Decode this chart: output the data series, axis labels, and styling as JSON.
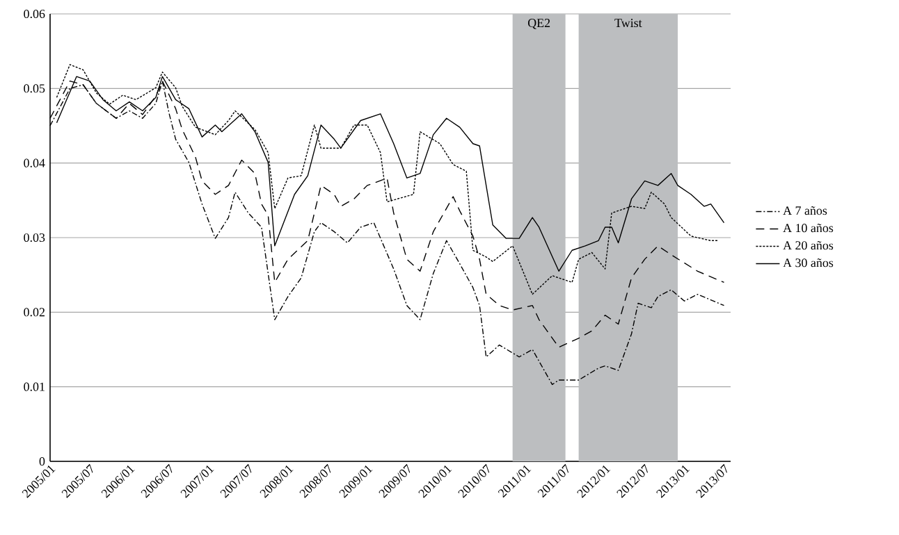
{
  "chart_data": {
    "type": "line",
    "ylim": [
      0,
      0.06
    ],
    "xlim": [
      "2005-01",
      "2013-08"
    ],
    "yticks": [
      0,
      0.01,
      0.02,
      0.03,
      0.04,
      0.05,
      0.06
    ],
    "xticks": [
      {
        "value": "2005-01",
        "label": "2005/01"
      },
      {
        "value": "2005-07",
        "label": "2005/07"
      },
      {
        "value": "2006-01",
        "label": "2006/01"
      },
      {
        "value": "2006-07",
        "label": "2006/07"
      },
      {
        "value": "2007-01",
        "label": "2007/01"
      },
      {
        "value": "2007-07",
        "label": "2007/07"
      },
      {
        "value": "2008-01",
        "label": "2008/01"
      },
      {
        "value": "2008-07",
        "label": "2008/07"
      },
      {
        "value": "2009-01",
        "label": "2009/01"
      },
      {
        "value": "2009-07",
        "label": "2009/07"
      },
      {
        "value": "2010-01",
        "label": "2010/01"
      },
      {
        "value": "2010-07",
        "label": "2010/07"
      },
      {
        "value": "2011-01",
        "label": "2011/01"
      },
      {
        "value": "2011-07",
        "label": "2011/07"
      },
      {
        "value": "2012-01",
        "label": "2012/01"
      },
      {
        "value": "2012-07",
        "label": "2012/07"
      },
      {
        "value": "2013-01",
        "label": "2013/01"
      },
      {
        "value": "2013-07",
        "label": "2013/07"
      }
    ],
    "grid": "y",
    "legend": "right",
    "marker": "none",
    "bands": [
      {
        "axis": "x",
        "from": "2010-11",
        "to": "2011-07",
        "label": "QE2",
        "color": "#bcbec0"
      },
      {
        "axis": "x",
        "from": "2011-09",
        "to": "2012-12",
        "label": "Twist",
        "color": "#bcbec0"
      }
    ],
    "series": [
      {
        "name": "A 7 años",
        "color": "#000000",
        "line_style": "dashdot",
        "x": [
          "2005-01",
          "2005-04",
          "2005-06",
          "2005-08",
          "2005-11",
          "2006-01",
          "2006-03",
          "2006-05",
          "2006-06",
          "2006-07",
          "2006-08",
          "2006-10",
          "2006-12",
          "2007-02",
          "2007-04",
          "2007-05",
          "2007-07",
          "2007-09",
          "2007-11",
          "2008-01",
          "2008-03",
          "2008-05",
          "2008-06",
          "2008-08",
          "2008-10",
          "2008-12",
          "2009-02",
          "2009-05",
          "2009-07",
          "2009-09",
          "2009-11",
          "2010-01",
          "2010-03",
          "2010-05",
          "2010-06",
          "2010-07",
          "2010-09",
          "2010-12",
          "2011-02",
          "2011-05",
          "2011-06",
          "2011-09",
          "2011-12",
          "2012-01",
          "2012-03",
          "2012-05",
          "2012-06",
          "2012-08",
          "2012-09",
          "2012-11",
          "2013-01",
          "2013-03",
          "2013-07"
        ],
        "values": [
          0.045,
          0.05,
          0.0505,
          0.048,
          0.046,
          0.047,
          0.046,
          0.048,
          0.051,
          0.0467,
          0.0432,
          0.0401,
          0.0345,
          0.0299,
          0.0327,
          0.0361,
          0.0333,
          0.0314,
          0.019,
          0.0221,
          0.0246,
          0.0308,
          0.032,
          0.0308,
          0.0293,
          0.0314,
          0.032,
          0.0258,
          0.0209,
          0.019,
          0.0252,
          0.0296,
          0.0265,
          0.0233,
          0.0209,
          0.014,
          0.0156,
          0.014,
          0.015,
          0.0103,
          0.0109,
          0.0109,
          0.0125,
          0.0128,
          0.0122,
          0.0171,
          0.0212,
          0.0206,
          0.0221,
          0.023,
          0.0215,
          0.0224,
          0.0209
        ]
      },
      {
        "name": "A 10 años",
        "color": "#000000",
        "line_style": "dashed",
        "x": [
          "2005-01",
          "2005-04",
          "2005-06",
          "2005-08",
          "2005-11",
          "2006-01",
          "2006-03",
          "2006-05",
          "2006-06",
          "2006-08",
          "2006-09",
          "2006-11",
          "2006-12",
          "2007-02",
          "2007-04",
          "2007-06",
          "2007-08",
          "2007-09",
          "2007-10",
          "2007-11",
          "2008-01",
          "2008-04",
          "2008-06",
          "2008-08",
          "2008-09",
          "2008-11",
          "2009-01",
          "2009-02",
          "2009-04",
          "2009-05",
          "2009-07",
          "2009-09",
          "2009-11",
          "2010-02",
          "2010-03",
          "2010-05",
          "2010-06",
          "2010-07",
          "2010-09",
          "2010-11",
          "2011-02",
          "2011-03",
          "2011-06",
          "2011-09",
          "2011-11",
          "2012-01",
          "2012-03",
          "2012-05",
          "2012-07",
          "2012-09",
          "2012-11",
          "2013-03",
          "2013-07"
        ],
        "values": [
          0.046,
          0.051,
          0.0505,
          0.048,
          0.046,
          0.048,
          0.0465,
          0.049,
          0.051,
          0.0473,
          0.0445,
          0.0408,
          0.0376,
          0.0358,
          0.037,
          0.0404,
          0.0386,
          0.0345,
          0.033,
          0.024,
          0.0271,
          0.0296,
          0.037,
          0.0358,
          0.0342,
          0.0352,
          0.037,
          0.0373,
          0.038,
          0.0333,
          0.0271,
          0.0255,
          0.0308,
          0.0355,
          0.0336,
          0.0302,
          0.0271,
          0.0224,
          0.0209,
          0.0203,
          0.0209,
          0.019,
          0.0153,
          0.0165,
          0.0175,
          0.0196,
          0.0184,
          0.0246,
          0.0271,
          0.0289,
          0.0277,
          0.0255,
          0.024
        ]
      },
      {
        "name": "A 20 años",
        "color": "#000000",
        "line_style": "dotted",
        "x": [
          "2005-02",
          "2005-04",
          "2005-06",
          "2005-08",
          "2005-10",
          "2005-12",
          "2006-02",
          "2006-05",
          "2006-06",
          "2006-08",
          "2006-09",
          "2006-11",
          "2007-02",
          "2007-04",
          "2007-05",
          "2007-08",
          "2007-10",
          "2007-11",
          "2008-01",
          "2008-03",
          "2008-05",
          "2008-06",
          "2008-09",
          "2008-11",
          "2009-01",
          "2009-03",
          "2009-04",
          "2009-08",
          "2009-09",
          "2009-12",
          "2010-02",
          "2010-04",
          "2010-05",
          "2010-07",
          "2010-08",
          "2010-11",
          "2011-02",
          "2011-05",
          "2011-08",
          "2011-09",
          "2011-11",
          "2012-01",
          "2012-02",
          "2012-05",
          "2012-07",
          "2012-08",
          "2012-10",
          "2012-11",
          "2013-02",
          "2013-05",
          "2013-06"
        ],
        "values": [
          0.0488,
          0.0532,
          0.0525,
          0.0494,
          0.0479,
          0.0491,
          0.0485,
          0.0501,
          0.0522,
          0.0501,
          0.0476,
          0.0448,
          0.0438,
          0.0457,
          0.047,
          0.0445,
          0.0414,
          0.0339,
          0.038,
          0.0383,
          0.0451,
          0.042,
          0.042,
          0.0451,
          0.0451,
          0.0414,
          0.0348,
          0.0358,
          0.0442,
          0.0426,
          0.0398,
          0.0389,
          0.0283,
          0.0274,
          0.0268,
          0.0289,
          0.0224,
          0.0249,
          0.024,
          0.0271,
          0.028,
          0.0258,
          0.0333,
          0.0342,
          0.0339,
          0.0361,
          0.0345,
          0.0327,
          0.0302,
          0.0296,
          0.0296
        ]
      },
      {
        "name": "A 30 años",
        "color": "#000000",
        "line_style": "solid",
        "x": [
          "2005-02",
          "2005-05",
          "2005-07",
          "2005-09",
          "2005-11",
          "2006-01",
          "2006-03",
          "2006-05",
          "2006-06",
          "2006-08",
          "2006-10",
          "2006-12",
          "2007-02",
          "2007-03",
          "2007-06",
          "2007-08",
          "2007-10",
          "2007-11",
          "2008-02",
          "2008-04",
          "2008-06",
          "2008-08",
          "2008-09",
          "2008-12",
          "2009-03",
          "2009-05",
          "2009-07",
          "2009-09",
          "2009-11",
          "2010-01",
          "2010-03",
          "2010-05",
          "2010-06",
          "2010-08",
          "2010-10",
          "2010-12",
          "2011-02",
          "2011-03",
          "2011-06",
          "2011-08",
          "2011-10",
          "2011-12",
          "2012-01",
          "2012-02",
          "2012-03",
          "2012-05",
          "2012-07",
          "2012-09",
          "2012-11",
          "2012-12",
          "2013-02",
          "2013-04",
          "2013-05",
          "2013-07"
        ],
        "values": [
          0.0454,
          0.0516,
          0.051,
          0.0485,
          0.047,
          0.0482,
          0.047,
          0.0488,
          0.0516,
          0.0485,
          0.0473,
          0.0435,
          0.0451,
          0.0442,
          0.0466,
          0.0442,
          0.0401,
          0.0289,
          0.0358,
          0.0383,
          0.0451,
          0.0432,
          0.042,
          0.0457,
          0.0466,
          0.0426,
          0.038,
          0.0386,
          0.0438,
          0.046,
          0.0448,
          0.0426,
          0.0423,
          0.0317,
          0.0299,
          0.0299,
          0.0327,
          0.0314,
          0.0255,
          0.0283,
          0.0289,
          0.0296,
          0.0314,
          0.0314,
          0.0293,
          0.0352,
          0.0376,
          0.037,
          0.0386,
          0.037,
          0.0358,
          0.0342,
          0.0345,
          0.032
        ]
      }
    ]
  }
}
